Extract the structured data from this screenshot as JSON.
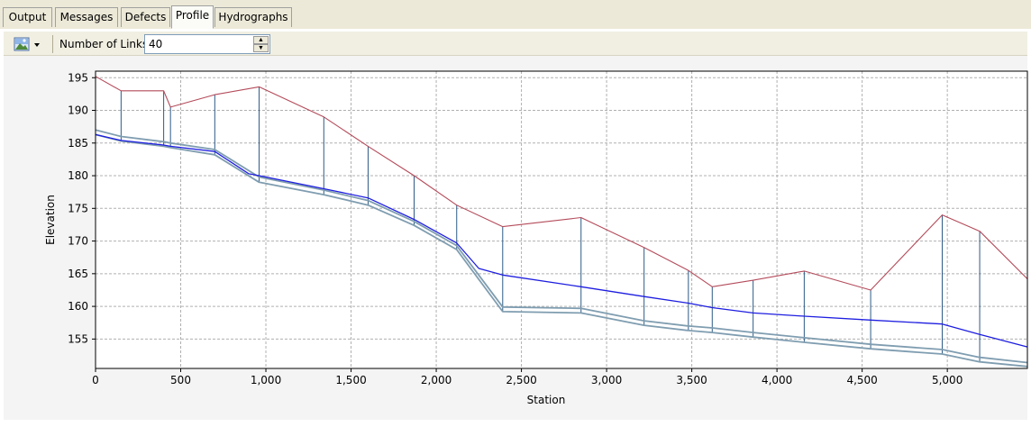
{
  "tabs": [
    {
      "label": "Output",
      "active": false
    },
    {
      "label": "Messages",
      "active": false
    },
    {
      "label": "Defects",
      "active": false
    },
    {
      "label": "Profile",
      "active": true
    },
    {
      "label": "Hydrographs",
      "active": false
    }
  ],
  "toolbar": {
    "image_button_icon": "picture-icon",
    "links_label": "Number of Links",
    "links_value": "40"
  },
  "chart_data": {
    "type": "line",
    "xlabel": "Station",
    "ylabel": "Elevation",
    "xlim": [
      0,
      5470
    ],
    "ylim": [
      150.5,
      196
    ],
    "grid": true,
    "x_ticks": [
      0,
      500,
      1000,
      1500,
      2000,
      2500,
      3000,
      3500,
      4000,
      4500,
      5000
    ],
    "x_tick_labels": [
      "0",
      "500",
      "1,000",
      "1,500",
      "2,000",
      "2,500",
      "3,000",
      "3,500",
      "4,000",
      "4,500",
      "5,000"
    ],
    "y_ticks": [
      155,
      160,
      165,
      170,
      175,
      180,
      185,
      190,
      195
    ],
    "y_tick_labels": [
      "155",
      "160",
      "165",
      "170",
      "175",
      "180",
      "185",
      "190",
      "195"
    ],
    "colors": {
      "ground": "#b44b5a",
      "hgl": "#1e1ee0",
      "pipe": "#7f9db0",
      "node": "#2d5a86"
    },
    "series": [
      {
        "key": "ground",
        "points": [
          [
            0,
            195.2
          ],
          [
            150,
            193
          ],
          [
            400,
            193
          ],
          [
            440,
            190.5
          ],
          [
            700,
            192.4
          ],
          [
            960,
            193.6
          ],
          [
            1340,
            189
          ],
          [
            1600,
            184.5
          ],
          [
            1870,
            180
          ],
          [
            2120,
            175.5
          ],
          [
            2390,
            172.2
          ],
          [
            2850,
            173.6
          ],
          [
            3220,
            169
          ],
          [
            3480,
            165.5
          ],
          [
            3620,
            163
          ],
          [
            3860,
            164
          ],
          [
            4160,
            165.4
          ],
          [
            4550,
            162.5
          ],
          [
            4970,
            174
          ],
          [
            5190,
            171.5
          ],
          [
            5470,
            164.2
          ]
        ]
      },
      {
        "key": "hgl",
        "points": [
          [
            0,
            186.3
          ],
          [
            150,
            185.4
          ],
          [
            400,
            184.7
          ],
          [
            440,
            184.5
          ],
          [
            700,
            183.7
          ],
          [
            900,
            180.3
          ],
          [
            960,
            180
          ],
          [
            1340,
            178
          ],
          [
            1600,
            176.6
          ],
          [
            1870,
            173.3
          ],
          [
            2120,
            169.7
          ],
          [
            2250,
            165.8
          ],
          [
            2390,
            164.8
          ],
          [
            2850,
            163
          ],
          [
            3220,
            161.5
          ],
          [
            3480,
            160.5
          ],
          [
            3620,
            159.8
          ],
          [
            3860,
            159
          ],
          [
            4160,
            158.5
          ],
          [
            4550,
            157.9
          ],
          [
            4970,
            157.3
          ],
          [
            5190,
            155.7
          ],
          [
            5470,
            153.8
          ]
        ]
      },
      {
        "key": "pipe_top",
        "points": [
          [
            0,
            187
          ],
          [
            150,
            186
          ],
          [
            400,
            185.2
          ],
          [
            440,
            185
          ],
          [
            700,
            184
          ],
          [
            960,
            179.8
          ],
          [
            1340,
            177.8
          ],
          [
            1600,
            176.2
          ],
          [
            1870,
            173
          ],
          [
            2120,
            169.3
          ],
          [
            2390,
            159.9
          ],
          [
            2850,
            159.7
          ],
          [
            3220,
            157.8
          ],
          [
            3480,
            157
          ],
          [
            3620,
            156.7
          ],
          [
            3860,
            156
          ],
          [
            4160,
            155.2
          ],
          [
            4550,
            154.2
          ],
          [
            4970,
            153.4
          ],
          [
            5190,
            152.2
          ],
          [
            5470,
            151.4
          ]
        ]
      },
      {
        "key": "pipe_bottom",
        "points": [
          [
            0,
            186.3
          ],
          [
            150,
            185.3
          ],
          [
            400,
            184.5
          ],
          [
            440,
            184.3
          ],
          [
            700,
            183.2
          ],
          [
            960,
            179
          ],
          [
            1340,
            177.1
          ],
          [
            1600,
            175.5
          ],
          [
            1870,
            172.4
          ],
          [
            2120,
            168.7
          ],
          [
            2390,
            159.2
          ],
          [
            2850,
            159
          ],
          [
            3220,
            157.1
          ],
          [
            3480,
            156.3
          ],
          [
            3620,
            156
          ],
          [
            3860,
            155.3
          ],
          [
            4160,
            154.5
          ],
          [
            4550,
            153.5
          ],
          [
            4970,
            152.7
          ],
          [
            5190,
            151.5
          ],
          [
            5470,
            150.8
          ]
        ]
      }
    ],
    "nodes": [
      150,
      400,
      440,
      700,
      960,
      1340,
      1600,
      1870,
      2120,
      2390,
      2850,
      3220,
      3480,
      3620,
      3860,
      4160,
      4550,
      4970,
      5190
    ]
  }
}
